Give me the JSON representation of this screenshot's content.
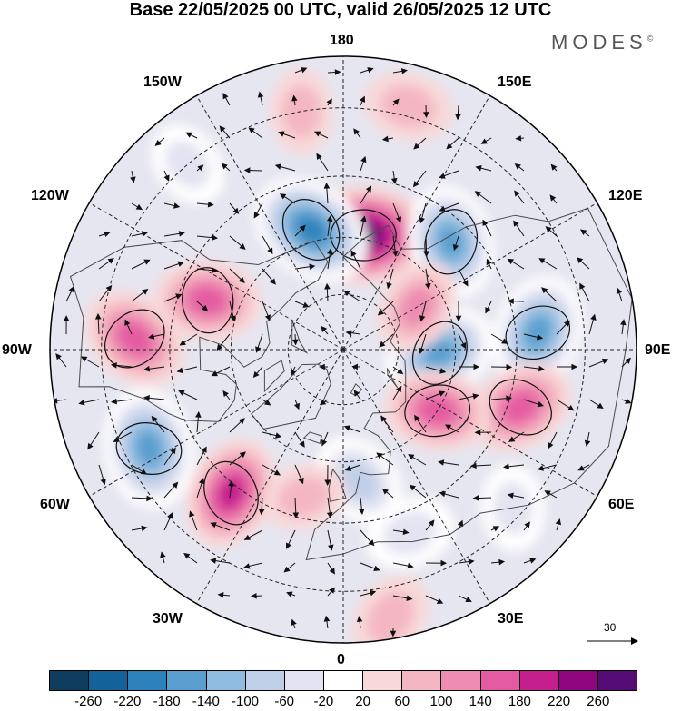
{
  "title": "Base 22/05/2025 00 UTC, valid 26/05/2025 12 UTC",
  "brand": {
    "name": "MODES",
    "mark": "©"
  },
  "longitude_labels": {
    "n180": "180",
    "e150": "150E",
    "e120": "120E",
    "e90": "90E",
    "e60": "60E",
    "e30": "30E",
    "s0": "0",
    "w30": "30W",
    "w60": "60W",
    "w90": "90W",
    "w120": "120W",
    "w150": "150W"
  },
  "reference_vector": {
    "label": "30",
    "icon": "arrow-right-icon"
  },
  "colorbar": {
    "colors": [
      "#0e3d5f",
      "#13629a",
      "#2d82bc",
      "#5a9fcf",
      "#8fbce0",
      "#c0cfe8",
      "#e3e3f2",
      "#ffffff",
      "#f8d8d8",
      "#f4b7c2",
      "#ee8cb1",
      "#e45ba1",
      "#c51f8e",
      "#8e077f",
      "#540b73"
    ],
    "tick_labels": [
      "-260",
      "-220",
      "-180",
      "-140",
      "-100",
      "-60",
      "-20",
      "20",
      "60",
      "100",
      "140",
      "180",
      "220",
      "260"
    ]
  },
  "anomalies": [
    {
      "lon": 170,
      "lat": 59,
      "value": 250
    },
    {
      "lon": -165,
      "lat": 57,
      "value": -210
    },
    {
      "lon": 135,
      "lat": 50,
      "value": -170
    },
    {
      "lon": 95,
      "lat": 40,
      "value": -180
    },
    {
      "lon": 72,
      "lat": 42,
      "value": 150
    },
    {
      "lon": -110,
      "lat": 52,
      "value": 150
    },
    {
      "lon": -93,
      "lat": 37,
      "value": 160
    },
    {
      "lon": -63,
      "lat": 35,
      "value": -200
    },
    {
      "lon": -38,
      "lat": 43,
      "value": 170
    },
    {
      "lon": 88,
      "lat": 64,
      "value": -170
    },
    {
      "lon": 57,
      "lat": 60,
      "value": 150
    },
    {
      "lon": 7,
      "lat": 55,
      "value": -110
    },
    {
      "lon": 47,
      "lat": 32,
      "value": -60
    },
    {
      "lon": 120,
      "lat": 67,
      "value": 100
    },
    {
      "lon": 20,
      "lat": 40,
      "value": -80
    },
    {
      "lon": 165,
      "lat": 28,
      "value": 80
    },
    {
      "lon": -140,
      "lat": 30,
      "value": -60
    },
    {
      "lon": -170,
      "lat": 30,
      "value": 60
    },
    {
      "lon": 10,
      "lat": 24,
      "value": 80
    },
    {
      "lon": -15,
      "lat": 50,
      "value": 60
    }
  ]
}
